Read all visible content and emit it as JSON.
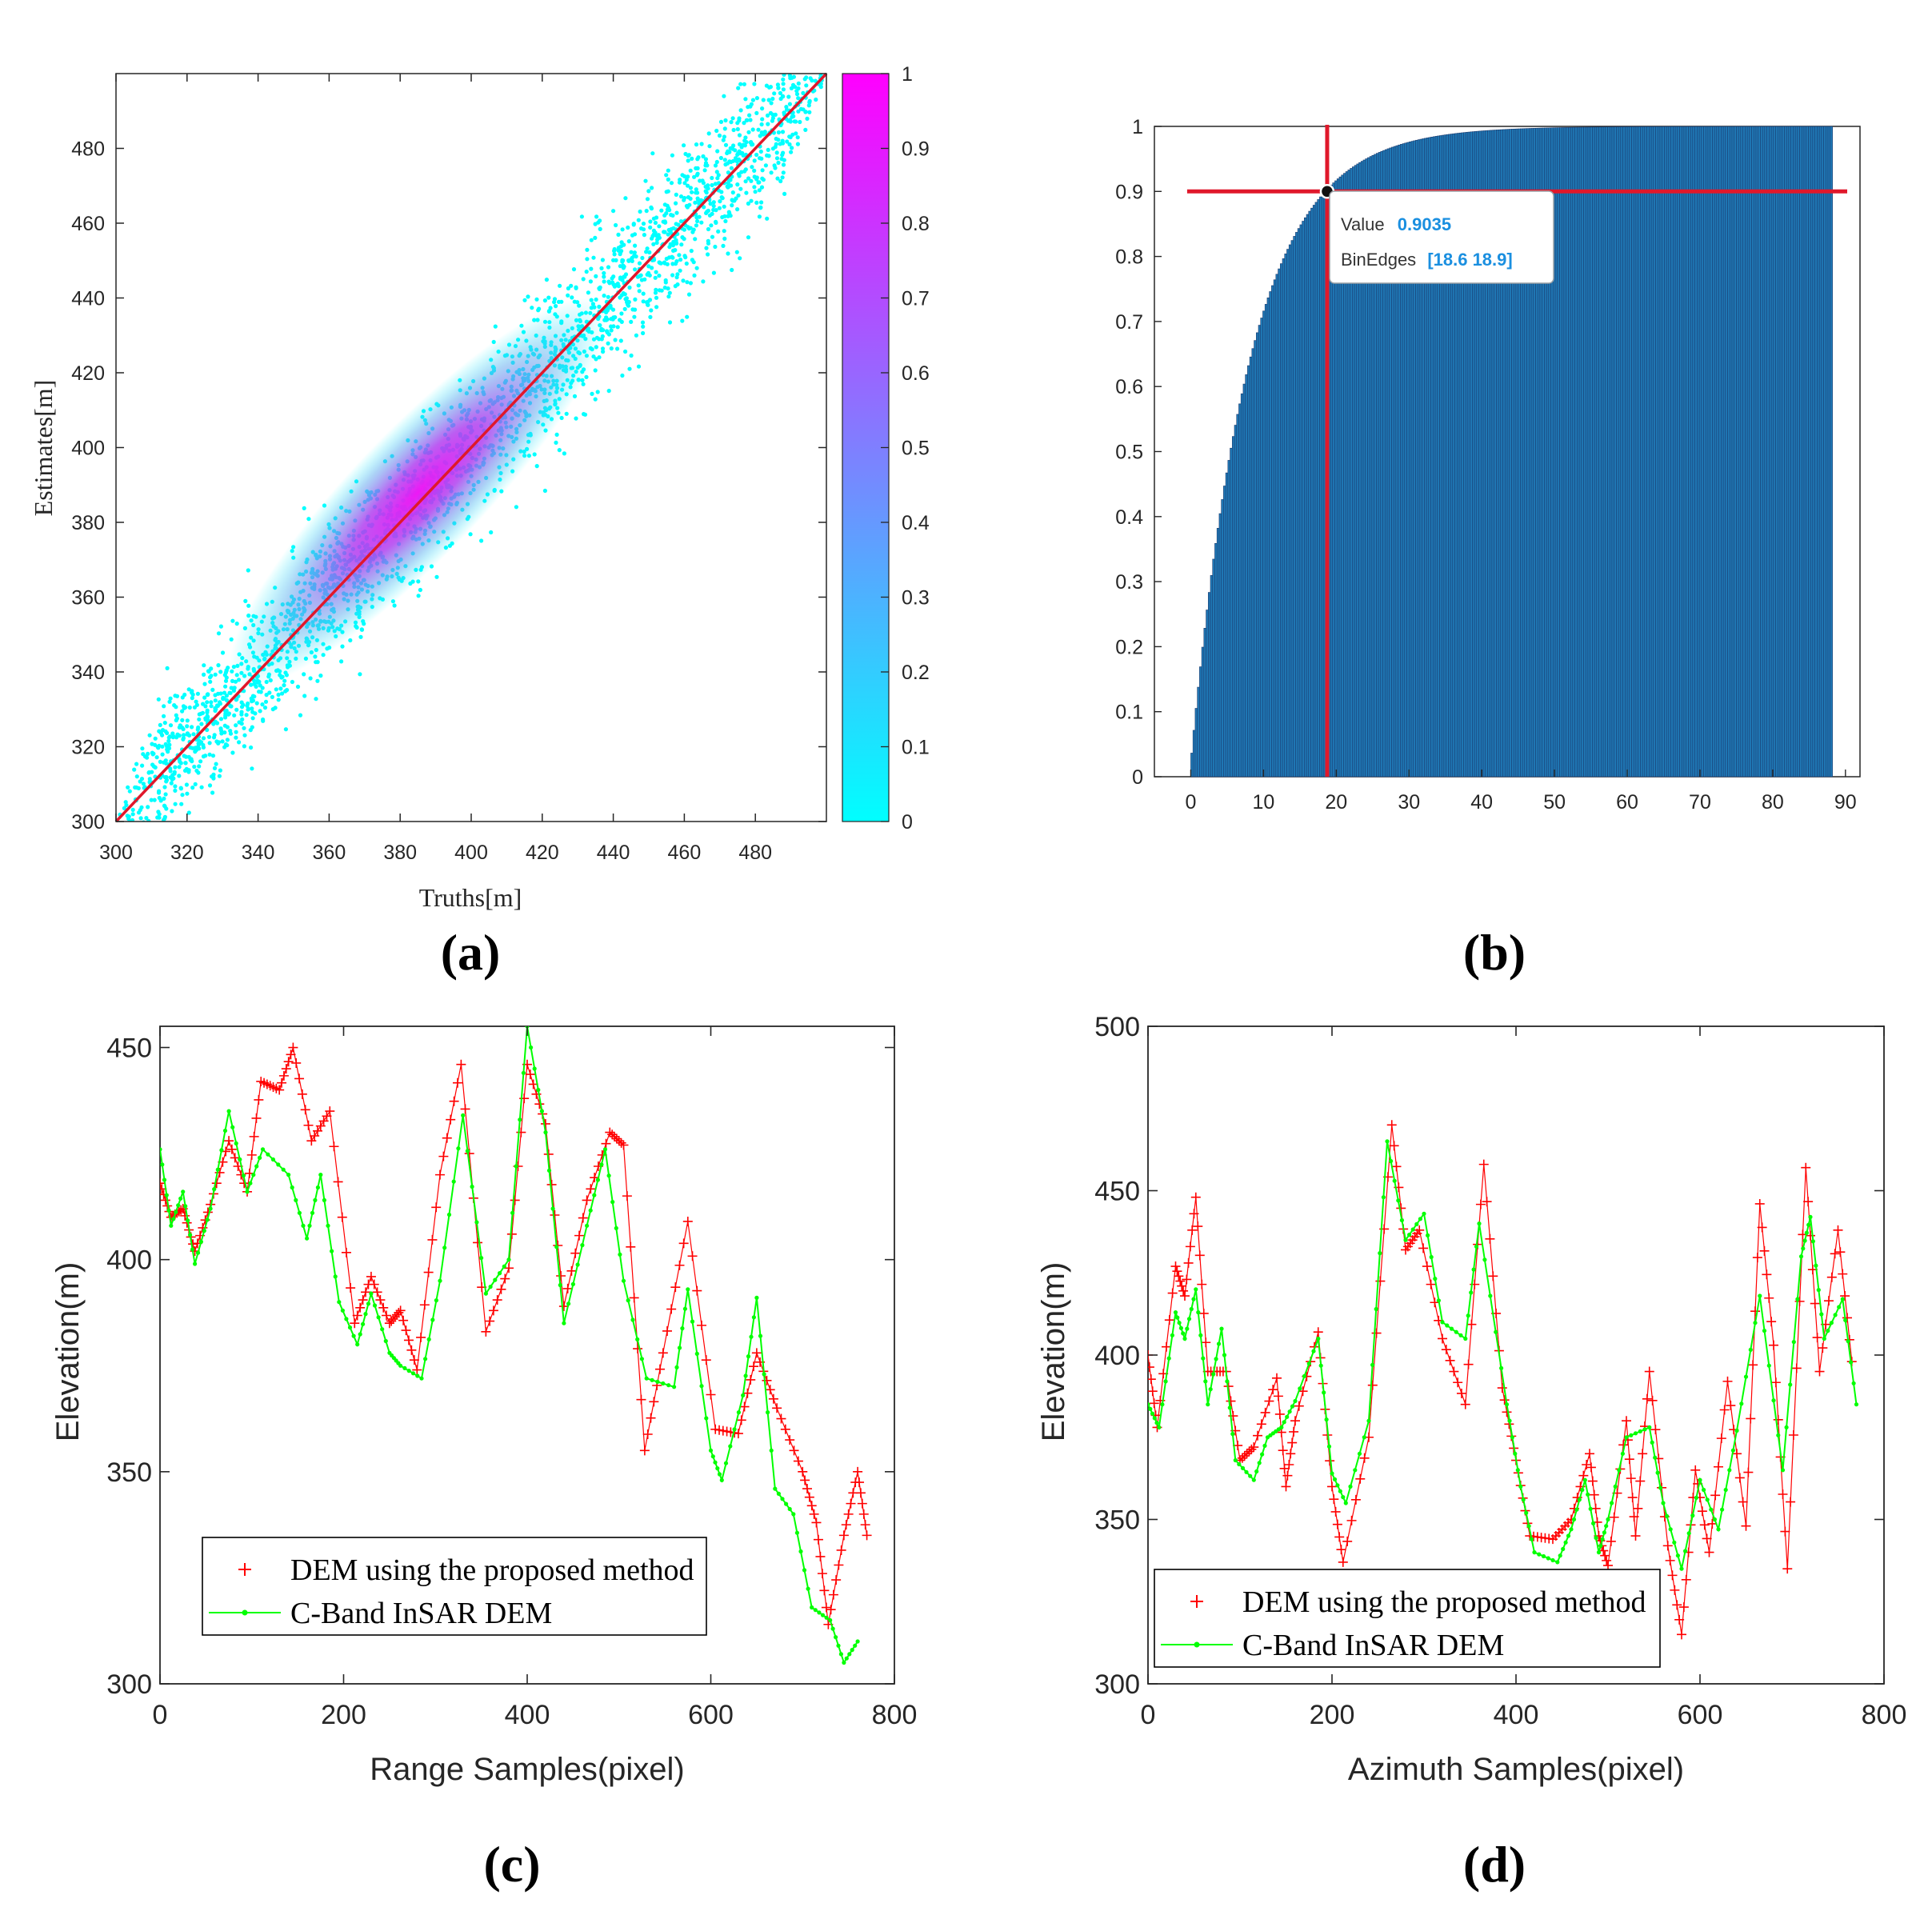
{
  "panels": {
    "a": "(a)",
    "b": "(b)",
    "c": "(c)",
    "d": "(d)"
  },
  "chart_data": [
    {
      "id": "a",
      "type": "scatter",
      "title": "",
      "xlabel": "Truths[m]",
      "ylabel": "Estimates[m]",
      "xlim": [
        300,
        500
      ],
      "ylim": [
        300,
        500
      ],
      "xticks": [
        300,
        320,
        340,
        360,
        380,
        400,
        420,
        440,
        460,
        480
      ],
      "yticks": [
        300,
        320,
        340,
        360,
        380,
        400,
        420,
        440,
        460,
        480
      ],
      "density_center": [
        385,
        388
      ],
      "point_cloud": {
        "x_range": [
          300,
          500
        ],
        "relation": "y ≈ x",
        "spread_m": 15
      },
      "reference_line": {
        "x": [
          300,
          500
        ],
        "y": [
          300,
          500
        ],
        "color": "#e0182b"
      },
      "colorbar": {
        "range": [
          0,
          1
        ],
        "ticks": [
          0,
          0.1,
          0.2,
          0.3,
          0.4,
          0.5,
          0.6,
          0.7,
          0.8,
          0.9,
          1
        ],
        "colors": [
          "#00ffff",
          "#ff00ff"
        ]
      },
      "grid": false
    },
    {
      "id": "b",
      "type": "bar",
      "title": "",
      "xlim": [
        -5,
        92
      ],
      "ylim": [
        0,
        1
      ],
      "xticks": [
        0,
        10,
        20,
        30,
        40,
        50,
        60,
        70,
        80,
        90
      ],
      "yticks": [
        0,
        0.1,
        0.2,
        0.3,
        0.4,
        0.5,
        0.6,
        0.7,
        0.8,
        0.9,
        1
      ],
      "bin_width": 0.3,
      "bins_range": [
        0,
        88
      ],
      "cdf_scale": 8.1,
      "bar_color": "#1f77b4",
      "crosshair": {
        "x": 18.75,
        "y": 0.9,
        "color": "#e0182b"
      },
      "datatip": {
        "value_label": "Value",
        "value": "0.9035",
        "bins_label": "BinEdges",
        "bins": "[18.6 18.9]"
      },
      "grid": false
    },
    {
      "id": "c",
      "type": "line",
      "title": "",
      "xlabel": "Range Samples(pixel)",
      "ylabel": "Elevation(m)",
      "xlim": [
        0,
        800
      ],
      "ylim": [
        300,
        455
      ],
      "xticks": [
        0,
        200,
        400,
        600,
        800
      ],
      "yticks": [
        300,
        350,
        400,
        450
      ],
      "legend_position": "lower-left",
      "series": [
        {
          "name": "DEM using the proposed method",
          "color": "#ff0000",
          "marker": "+",
          "x": [
            0,
            12,
            25,
            38,
            55,
            75,
            95,
            110,
            130,
            145,
            165,
            185,
            212,
            230,
            250,
            262,
            280,
            305,
            328,
            355,
            380,
            400,
            420,
            440,
            465,
            490,
            505,
            528,
            548,
            575,
            605,
            630,
            650,
            672,
            700,
            715,
            728,
            745,
            760,
            770
          ],
          "y": [
            418,
            410,
            412,
            402,
            413,
            428,
            416,
            442,
            440,
            450,
            428,
            435,
            385,
            396,
            385,
            388,
            374,
            420,
            446,
            383,
            398,
            446,
            432,
            389,
            414,
            430,
            427,
            355,
            378,
            409,
            360,
            359,
            378,
            365,
            350,
            338,
            314,
            335,
            350,
            335
          ]
        },
        {
          "name": "C-Band InSAR DEM",
          "color": "#00ff00",
          "marker": ".",
          "x": [
            0,
            12,
            25,
            38,
            55,
            75,
            95,
            112,
            140,
            160,
            175,
            195,
            215,
            230,
            250,
            262,
            285,
            305,
            330,
            355,
            380,
            400,
            420,
            440,
            465,
            485,
            505,
            530,
            560,
            575,
            600,
            612,
            635,
            650,
            670,
            690,
            710,
            730,
            745,
            760
          ],
          "y": [
            426,
            408,
            416,
            399,
            412,
            435,
            416,
            426,
            420,
            405,
            420,
            390,
            380,
            392,
            378,
            375,
            372,
            395,
            434,
            392,
            400,
            455,
            430,
            385,
            408,
            426,
            395,
            372,
            370,
            393,
            355,
            348,
            368,
            391,
            346,
            340,
            318,
            315,
            305,
            310
          ]
        }
      ],
      "grid": false
    },
    {
      "id": "d",
      "type": "line",
      "title": "",
      "xlabel": "Azimuth Samples(pixel)",
      "ylabel": "Elevation(m)",
      "xlim": [
        0,
        800
      ],
      "ylim": [
        300,
        500
      ],
      "xticks": [
        0,
        200,
        400,
        600,
        800
      ],
      "yticks": [
        300,
        350,
        400,
        450,
        500
      ],
      "legend_position": "lower-left",
      "series": [
        {
          "name": "DEM using the proposed method",
          "color": "#ff0000",
          "marker": "+",
          "x": [
            0,
            10,
            30,
            40,
            52,
            65,
            85,
            100,
            115,
            140,
            150,
            160,
            185,
            200,
            212,
            240,
            265,
            280,
            295,
            320,
            345,
            365,
            385,
            400,
            415,
            440,
            460,
            480,
            490,
            500,
            520,
            530,
            545,
            565,
            580,
            595,
            610,
            630,
            650,
            665,
            680,
            695,
            715,
            730,
            750,
            765
          ],
          "y": [
            400,
            378,
            427,
            418,
            448,
            395,
            395,
            368,
            372,
            393,
            360,
            380,
            407,
            360,
            337,
            375,
            470,
            432,
            438,
            405,
            385,
            458,
            390,
            368,
            345,
            344,
            350,
            370,
            345,
            336,
            380,
            345,
            395,
            342,
            315,
            365,
            340,
            392,
            348,
            446,
            403,
            335,
            457,
            395,
            438,
            398
          ]
        },
        {
          "name": "C-Band InSAR DEM",
          "color": "#00ff00",
          "marker": ".",
          "x": [
            0,
            12,
            30,
            40,
            52,
            65,
            80,
            95,
            115,
            130,
            145,
            160,
            185,
            200,
            215,
            240,
            260,
            280,
            300,
            320,
            345,
            360,
            390,
            405,
            420,
            445,
            460,
            475,
            490,
            500,
            520,
            545,
            560,
            580,
            600,
            620,
            640,
            665,
            690,
            710,
            720,
            735,
            755,
            770
          ],
          "y": [
            385,
            378,
            413,
            405,
            420,
            385,
            408,
            368,
            362,
            375,
            378,
            386,
            405,
            364,
            355,
            380,
            465,
            435,
            443,
            410,
            405,
            440,
            385,
            360,
            340,
            337,
            347,
            362,
            340,
            350,
            375,
            378,
            355,
            335,
            362,
            347,
            377,
            418,
            365,
            430,
            442,
            405,
            417,
            385
          ]
        }
      ],
      "grid": false
    }
  ]
}
